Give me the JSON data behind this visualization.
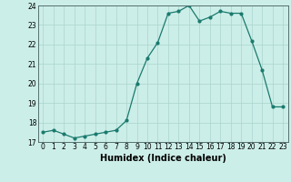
{
  "x": [
    0,
    1,
    2,
    3,
    4,
    5,
    6,
    7,
    8,
    9,
    10,
    11,
    12,
    13,
    14,
    15,
    16,
    17,
    18,
    19,
    20,
    21,
    22,
    23
  ],
  "y": [
    17.5,
    17.6,
    17.4,
    17.2,
    17.3,
    17.4,
    17.5,
    17.6,
    18.1,
    20.0,
    21.3,
    22.1,
    23.6,
    23.7,
    24.0,
    23.2,
    23.4,
    23.7,
    23.6,
    23.6,
    22.2,
    20.7,
    18.8,
    18.8
  ],
  "xlabel": "Humidex (Indice chaleur)",
  "ylim": [
    17,
    24
  ],
  "xlim_min": -0.5,
  "xlim_max": 23.5,
  "yticks": [
    17,
    18,
    19,
    20,
    21,
    22,
    23,
    24
  ],
  "xticks": [
    0,
    1,
    2,
    3,
    4,
    5,
    6,
    7,
    8,
    9,
    10,
    11,
    12,
    13,
    14,
    15,
    16,
    17,
    18,
    19,
    20,
    21,
    22,
    23
  ],
  "line_color": "#1a7a6e",
  "marker_color": "#1a7a6e",
  "bg_color": "#cceee8",
  "grid_color": "#aad4ce",
  "tick_label_fontsize": 5.5,
  "xlabel_fontsize": 7.0,
  "marker_size": 2.0,
  "line_width": 0.9
}
